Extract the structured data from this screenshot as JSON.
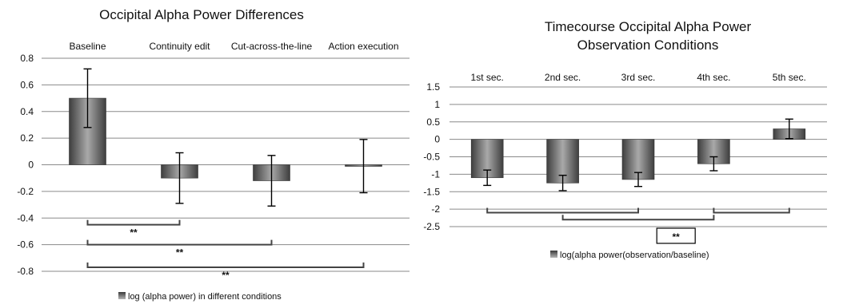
{
  "chart_data": [
    {
      "type": "bar",
      "title": "Occipital Alpha Power Differences",
      "categories": [
        "Baseline",
        "Continuity edit",
        "Cut-across-the-line",
        "Action execution"
      ],
      "series": [
        {
          "name": "log (alpha power) in different conditions",
          "values": [
            0.5,
            -0.1,
            -0.12,
            -0.01
          ],
          "error": [
            0.22,
            0.19,
            0.19,
            0.2
          ]
        }
      ],
      "ylim": [
        -0.8,
        0.8
      ],
      "yticks": [
        "0.8",
        "0.6",
        "0.4",
        "0.2",
        "0",
        "-0.2",
        "-0.4",
        "-0.6",
        "-0.8"
      ],
      "grid": true,
      "legend_position": "bottom",
      "significance": [
        {
          "from": "Baseline",
          "to": "Continuity edit",
          "label": "**",
          "y": -0.45
        },
        {
          "from": "Baseline",
          "to": "Cut-across-the-line",
          "label": "**",
          "y": -0.6
        },
        {
          "from": "Baseline",
          "to": "Action execution",
          "label": "**",
          "y": -0.77
        }
      ]
    },
    {
      "type": "bar",
      "title": "Timecourse Occipital Alpha Power",
      "subtitle": "Observation Conditions",
      "categories": [
        "1st sec.",
        "2nd sec.",
        "3rd sec.",
        "4th sec.",
        "5th sec."
      ],
      "series": [
        {
          "name": "log(alpha power(observation/baseline)",
          "values": [
            -1.1,
            -1.25,
            -1.15,
            -0.7,
            0.3
          ],
          "error": [
            0.22,
            0.22,
            0.2,
            0.2,
            0.28
          ]
        }
      ],
      "ylim": [
        -2.5,
        1.5
      ],
      "yticks": [
        "1.5",
        "1",
        "0.5",
        "0",
        "-0.5",
        "-1",
        "-1.5",
        "-2",
        "-2.5"
      ],
      "grid": true,
      "legend_position": "bottom",
      "significance": [
        {
          "from": "1st sec.",
          "to": "3rd sec.",
          "y": -2.1
        },
        {
          "from": "2nd sec.",
          "to": "4th sec.",
          "y": -2.3
        },
        {
          "from": "4th sec.",
          "to": "5th sec.",
          "y": -2.1
        }
      ],
      "significance_label": "**"
    }
  ]
}
